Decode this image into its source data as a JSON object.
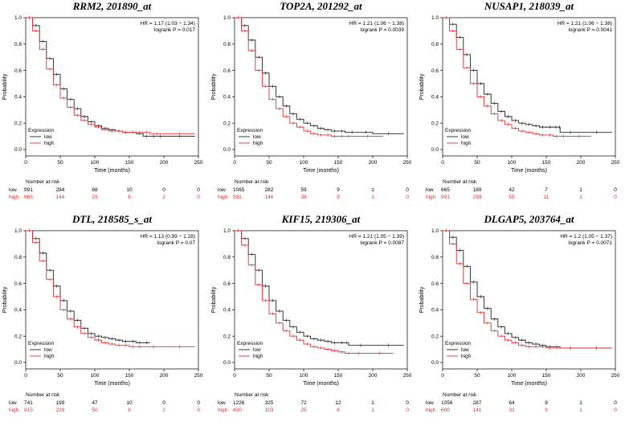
{
  "colors": {
    "low": "#222222",
    "high": "#e03030",
    "axis": "#000000"
  },
  "chart_data": [
    {
      "type": "line",
      "title": "RRM2, 201890_at",
      "hr_text": "HR = 1.17 (1.03 − 1.34)",
      "logrank_text": "logrank P = 0.017",
      "xlabel": "Time (months)",
      "ylabel": "Probability",
      "xlim": [
        0,
        250
      ],
      "ylim": [
        0,
        1.0
      ],
      "x_ticks": [
        "0",
        "50",
        "100",
        "150",
        "200",
        "250"
      ],
      "y_ticks": [
        "0.0",
        "0.2",
        "0.4",
        "0.6",
        "0.8",
        "1.0"
      ],
      "legend_title": "Expression",
      "legend_labels": [
        "low",
        "high"
      ],
      "risk_title": "Number at risk",
      "risk_rows": [
        {
          "label": "low",
          "values": [
            "991",
            "284",
            "68",
            "10",
            "0",
            "0"
          ]
        },
        {
          "label": "high",
          "values": [
            "665",
            "144",
            "29",
            "8",
            "2",
            "0"
          ]
        }
      ],
      "series": [
        {
          "name": "low",
          "x": [
            0,
            10,
            20,
            30,
            40,
            50,
            60,
            70,
            80,
            90,
            100,
            110,
            120,
            130,
            140,
            150,
            160,
            170,
            180,
            190,
            200,
            245
          ],
          "y": [
            1.0,
            0.94,
            0.82,
            0.69,
            0.57,
            0.46,
            0.38,
            0.31,
            0.25,
            0.21,
            0.18,
            0.16,
            0.15,
            0.14,
            0.13,
            0.13,
            0.12,
            0.1,
            0.1,
            0.1,
            0.1,
            0.1
          ]
        },
        {
          "name": "high",
          "x": [
            0,
            10,
            20,
            30,
            40,
            50,
            60,
            70,
            80,
            90,
            100,
            110,
            120,
            130,
            140,
            150,
            160,
            170,
            180,
            200,
            245
          ],
          "y": [
            1.0,
            0.9,
            0.76,
            0.61,
            0.49,
            0.39,
            0.32,
            0.26,
            0.22,
            0.19,
            0.17,
            0.15,
            0.14,
            0.14,
            0.13,
            0.13,
            0.13,
            0.13,
            0.12,
            0.12,
            0.12
          ]
        }
      ]
    },
    {
      "type": "line",
      "title": "TOP2A, 201292_at",
      "hr_text": "HR = 1.21 (1.06 − 1.38)",
      "logrank_text": "logrank P = 0.0039",
      "xlabel": "Time (months)",
      "ylabel": "Probability",
      "xlim": [
        0,
        250
      ],
      "ylim": [
        0,
        1.0
      ],
      "x_ticks": [
        "0",
        "50",
        "100",
        "150",
        "200",
        "250"
      ],
      "y_ticks": [
        "0.0",
        "0.2",
        "0.4",
        "0.6",
        "0.8",
        "1.0"
      ],
      "legend_title": "Expression",
      "legend_labels": [
        "low",
        "high"
      ],
      "risk_title": "Number at risk",
      "risk_rows": [
        {
          "label": "low",
          "values": [
            "1065",
            "282",
            "59",
            "9",
            "1",
            "0"
          ]
        },
        {
          "label": "high",
          "values": [
            "591",
            "146",
            "38",
            "9",
            "1",
            "0"
          ]
        }
      ],
      "series": [
        {
          "name": "low",
          "x": [
            0,
            10,
            20,
            30,
            40,
            50,
            60,
            70,
            80,
            90,
            100,
            110,
            120,
            130,
            140,
            150,
            160,
            180,
            200,
            245
          ],
          "y": [
            1.0,
            0.94,
            0.83,
            0.7,
            0.58,
            0.48,
            0.4,
            0.33,
            0.27,
            0.23,
            0.2,
            0.18,
            0.16,
            0.15,
            0.14,
            0.14,
            0.13,
            0.13,
            0.12,
            0.12
          ]
        },
        {
          "name": "high",
          "x": [
            0,
            10,
            20,
            30,
            40,
            50,
            60,
            70,
            80,
            90,
            100,
            110,
            120,
            130,
            140,
            150,
            160,
            170,
            215
          ],
          "y": [
            1.0,
            0.9,
            0.75,
            0.6,
            0.48,
            0.38,
            0.31,
            0.25,
            0.2,
            0.17,
            0.14,
            0.12,
            0.11,
            0.11,
            0.1,
            0.1,
            0.1,
            0.1,
            0.1
          ]
        }
      ]
    },
    {
      "type": "line",
      "title": "NUSAP1, 218039_at",
      "hr_text": "HR = 1.21 (1.06 − 1.38)",
      "logrank_text": "logrank P = 0.0041",
      "xlabel": "Time (months)",
      "ylabel": "Probability",
      "xlim": [
        0,
        250
      ],
      "ylim": [
        0,
        1.0
      ],
      "x_ticks": [
        "0",
        "50",
        "100",
        "150",
        "200",
        "250"
      ],
      "y_ticks": [
        "0.0",
        "0.2",
        "0.4",
        "0.6",
        "0.8",
        "1.0"
      ],
      "legend_title": "Expression",
      "legend_labels": [
        "low",
        "high"
      ],
      "risk_title": "Number at risk",
      "risk_rows": [
        {
          "label": "low",
          "values": [
            "665",
            "189",
            "42",
            "7",
            "1",
            "0"
          ]
        },
        {
          "label": "high",
          "values": [
            "991",
            "239",
            "55",
            "11",
            "1",
            "0"
          ]
        }
      ],
      "series": [
        {
          "name": "low",
          "x": [
            0,
            10,
            20,
            30,
            40,
            50,
            60,
            70,
            80,
            90,
            100,
            110,
            120,
            130,
            140,
            150,
            160,
            168,
            170,
            200,
            245
          ],
          "y": [
            1.0,
            0.95,
            0.85,
            0.72,
            0.6,
            0.5,
            0.42,
            0.35,
            0.29,
            0.25,
            0.22,
            0.2,
            0.19,
            0.18,
            0.17,
            0.17,
            0.17,
            0.17,
            0.13,
            0.13,
            0.13
          ]
        },
        {
          "name": "high",
          "x": [
            0,
            10,
            20,
            30,
            40,
            50,
            60,
            70,
            80,
            90,
            100,
            110,
            120,
            130,
            140,
            150,
            160,
            170,
            180,
            215
          ],
          "y": [
            1.0,
            0.9,
            0.76,
            0.62,
            0.5,
            0.4,
            0.33,
            0.27,
            0.22,
            0.19,
            0.16,
            0.14,
            0.13,
            0.12,
            0.11,
            0.11,
            0.1,
            0.1,
            0.1,
            0.1
          ]
        }
      ]
    },
    {
      "type": "line",
      "title": "DTL, 218585_s_at",
      "hr_text": "HR = 1.13 (0.99 − 1.28)",
      "logrank_text": "logrank P = 0.07",
      "xlabel": "Time (months)",
      "ylabel": "Probability",
      "xlim": [
        0,
        250
      ],
      "ylim": [
        0,
        1.0
      ],
      "x_ticks": [
        "0",
        "50",
        "100",
        "150",
        "200",
        "250"
      ],
      "y_ticks": [
        "0.0",
        "0.2",
        "0.4",
        "0.6",
        "0.8",
        "1.0"
      ],
      "legend_title": "Expression",
      "legend_labels": [
        "low",
        "high"
      ],
      "risk_title": "Number at risk",
      "risk_rows": [
        {
          "label": "low",
          "values": [
            "741",
            "199",
            "47",
            "10",
            "0",
            "0"
          ]
        },
        {
          "label": "high",
          "values": [
            "915",
            "229",
            "50",
            "8",
            "2",
            "0"
          ]
        }
      ],
      "series": [
        {
          "name": "low",
          "x": [
            0,
            10,
            20,
            30,
            40,
            50,
            60,
            70,
            80,
            90,
            100,
            110,
            120,
            130,
            140,
            150,
            160,
            170,
            180
          ],
          "y": [
            1.0,
            0.94,
            0.83,
            0.7,
            0.58,
            0.47,
            0.39,
            0.32,
            0.26,
            0.22,
            0.2,
            0.19,
            0.18,
            0.17,
            0.16,
            0.16,
            0.15,
            0.15,
            0.15
          ]
        },
        {
          "name": "high",
          "x": [
            0,
            10,
            20,
            30,
            40,
            50,
            60,
            70,
            80,
            90,
            100,
            110,
            120,
            130,
            140,
            150,
            160,
            170,
            200,
            245
          ],
          "y": [
            1.0,
            0.91,
            0.77,
            0.63,
            0.5,
            0.4,
            0.33,
            0.27,
            0.22,
            0.19,
            0.17,
            0.15,
            0.14,
            0.13,
            0.13,
            0.12,
            0.12,
            0.12,
            0.12,
            0.12
          ]
        }
      ]
    },
    {
      "type": "line",
      "title": "KIF15, 219306_at",
      "hr_text": "HR = 1.21 (1.05 − 1.39)",
      "logrank_text": "logrank P = 0.0087",
      "xlabel": "Time (months)",
      "ylabel": "Probability",
      "xlim": [
        0,
        250
      ],
      "ylim": [
        0,
        1.0
      ],
      "x_ticks": [
        "0",
        "50",
        "100",
        "150",
        "200",
        "250"
      ],
      "y_ticks": [
        "0.0",
        "0.2",
        "0.4",
        "0.6",
        "0.8",
        "1.0"
      ],
      "legend_title": "Expression",
      "legend_labels": [
        "low",
        "high"
      ],
      "risk_title": "Number at risk",
      "risk_rows": [
        {
          "label": "low",
          "values": [
            "1226",
            "325",
            "72",
            "12",
            "1",
            "0"
          ]
        },
        {
          "label": "high",
          "values": [
            "430",
            "103",
            "25",
            "6",
            "1",
            "0"
          ]
        }
      ],
      "series": [
        {
          "name": "low",
          "x": [
            0,
            10,
            20,
            30,
            40,
            50,
            60,
            70,
            80,
            90,
            100,
            110,
            120,
            130,
            140,
            150,
            160,
            165,
            200,
            245
          ],
          "y": [
            1.0,
            0.94,
            0.82,
            0.7,
            0.58,
            0.47,
            0.39,
            0.32,
            0.27,
            0.23,
            0.2,
            0.18,
            0.17,
            0.16,
            0.15,
            0.15,
            0.15,
            0.13,
            0.13,
            0.13
          ]
        },
        {
          "name": "high",
          "x": [
            0,
            10,
            20,
            30,
            40,
            50,
            60,
            70,
            80,
            90,
            100,
            110,
            120,
            130,
            140,
            150,
            160,
            170,
            190,
            230
          ],
          "y": [
            1.0,
            0.89,
            0.74,
            0.59,
            0.47,
            0.37,
            0.3,
            0.24,
            0.2,
            0.17,
            0.14,
            0.12,
            0.11,
            0.1,
            0.09,
            0.08,
            0.07,
            0.07,
            0.07,
            0.07
          ]
        }
      ]
    },
    {
      "type": "line",
      "title": "DLGAP5, 203764_at",
      "hr_text": "HR = 1.2 (1.05 − 1.37)",
      "logrank_text": "logrank P = 0.0071",
      "xlabel": "Time (months)",
      "ylabel": "Probability",
      "xlim": [
        0,
        250
      ],
      "ylim": [
        0,
        1.0
      ],
      "x_ticks": [
        "0",
        "50",
        "100",
        "150",
        "200",
        "250"
      ],
      "y_ticks": [
        "0.0",
        "0.2",
        "0.4",
        "0.6",
        "0.8",
        "1.0"
      ],
      "legend_title": "Expression",
      "legend_labels": [
        "low",
        "high"
      ],
      "risk_title": "Number at risk",
      "risk_rows": [
        {
          "label": "low",
          "values": [
            "1056",
            "287",
            "64",
            "9",
            "1",
            "0"
          ]
        },
        {
          "label": "high",
          "values": [
            "600",
            "141",
            "33",
            "9",
            "1",
            "0"
          ]
        }
      ],
      "series": [
        {
          "name": "low",
          "x": [
            0,
            10,
            20,
            30,
            40,
            50,
            60,
            70,
            80,
            90,
            100,
            110,
            120,
            130,
            140,
            150,
            160,
            170,
            200,
            245
          ],
          "y": [
            1.0,
            0.95,
            0.85,
            0.73,
            0.61,
            0.5,
            0.41,
            0.33,
            0.27,
            0.22,
            0.19,
            0.17,
            0.15,
            0.14,
            0.13,
            0.12,
            0.12,
            0.11,
            0.11,
            0.11
          ]
        },
        {
          "name": "high",
          "x": [
            0,
            10,
            20,
            30,
            40,
            50,
            60,
            70,
            80,
            90,
            100,
            110,
            120,
            130,
            140,
            150,
            160,
            170,
            200,
            245
          ],
          "y": [
            1.0,
            0.9,
            0.75,
            0.6,
            0.48,
            0.38,
            0.3,
            0.24,
            0.2,
            0.17,
            0.15,
            0.13,
            0.12,
            0.12,
            0.12,
            0.11,
            0.11,
            0.11,
            0.11,
            0.11
          ]
        }
      ]
    }
  ]
}
